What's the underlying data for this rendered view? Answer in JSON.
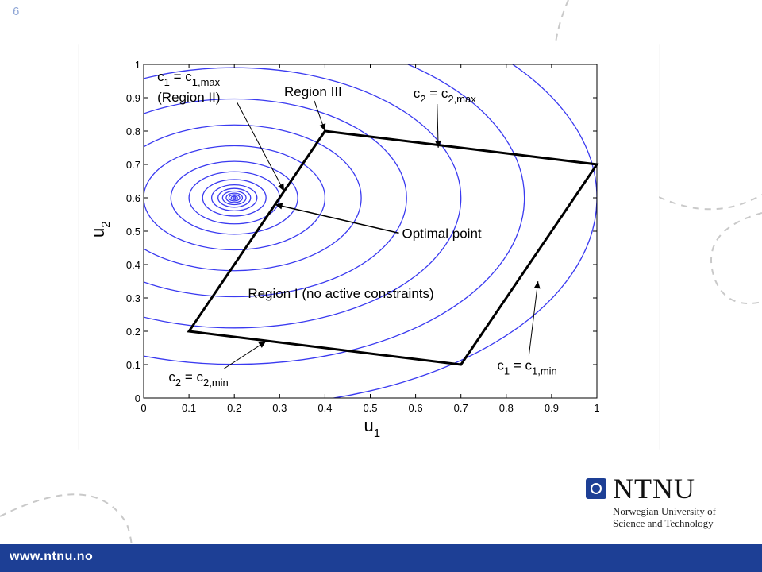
{
  "slide": {
    "number": "6"
  },
  "logo": {
    "wordmark": "NTNU",
    "subtitle_line1": "Norwegian University of",
    "subtitle_line2": "Science and Technology"
  },
  "footer": {
    "url": "www.ntnu.no"
  },
  "colors": {
    "contour": "#3a3af0",
    "region": "#000000",
    "brand": "#1d3f95"
  },
  "chart_data": {
    "type": "contour",
    "title": "",
    "xlabel": "u",
    "xlabel_sub": "1",
    "ylabel": "u",
    "ylabel_sub": "2",
    "xlim": [
      0,
      1
    ],
    "ylim": [
      0,
      1
    ],
    "xticks": [
      "0",
      "0.1",
      "0.2",
      "0.3",
      "0.4",
      "0.5",
      "0.6",
      "0.7",
      "0.8",
      "0.9",
      "1"
    ],
    "yticks": [
      "0",
      "0.1",
      "0.2",
      "0.3",
      "0.4",
      "0.5",
      "0.6",
      "0.7",
      "0.8",
      "0.9",
      "1"
    ],
    "grid": false,
    "contour_center": [
      0.2,
      0.6
    ],
    "contour_aspect": 0.78,
    "contour_radii": [
      0.003,
      0.007,
      0.012,
      0.018,
      0.026,
      0.036,
      0.05,
      0.07,
      0.1,
      0.14,
      0.2,
      0.28,
      0.38,
      0.5,
      0.64,
      0.8
    ],
    "feasible_region": [
      [
        0.1,
        0.2
      ],
      [
        0.4,
        0.8
      ],
      [
        1.0,
        0.7
      ],
      [
        0.7,
        0.1
      ]
    ],
    "optimal_point": [
      0.29,
      0.58
    ],
    "annotations": [
      {
        "id": "c1max",
        "main": "c",
        "sub": "1",
        "mid": " = c",
        "sub2": "1,max",
        "x": 0.03,
        "y": 0.95,
        "target": [
          0.31,
          0.62
        ]
      },
      {
        "id": "region2",
        "text": "(Region II)",
        "x": 0.03,
        "y": 0.888
      },
      {
        "id": "region3",
        "text": "Region III",
        "x": 0.31,
        "y": 0.905,
        "target": [
          0.4,
          0.8
        ]
      },
      {
        "id": "c2max",
        "main": "c",
        "sub": "2",
        "mid": " = c",
        "sub2": "2,max",
        "x": 0.595,
        "y": 0.9,
        "target": [
          0.65,
          0.75
        ]
      },
      {
        "id": "optimal",
        "text": "Optimal point",
        "x": 0.57,
        "y": 0.48,
        "target": [
          0.29,
          0.58
        ]
      },
      {
        "id": "region1",
        "text": "Region I (no active constraints)",
        "x": 0.23,
        "y": 0.3
      },
      {
        "id": "c1min",
        "main": "c",
        "sub": "1",
        "mid": " = c",
        "sub2": "1,min",
        "x": 0.78,
        "y": 0.085,
        "target": [
          0.87,
          0.35
        ]
      },
      {
        "id": "c2min",
        "main": "c",
        "sub": "2",
        "mid": " = c",
        "sub2": "2,min",
        "x": 0.055,
        "y": 0.05,
        "target": [
          0.27,
          0.17
        ]
      }
    ]
  }
}
